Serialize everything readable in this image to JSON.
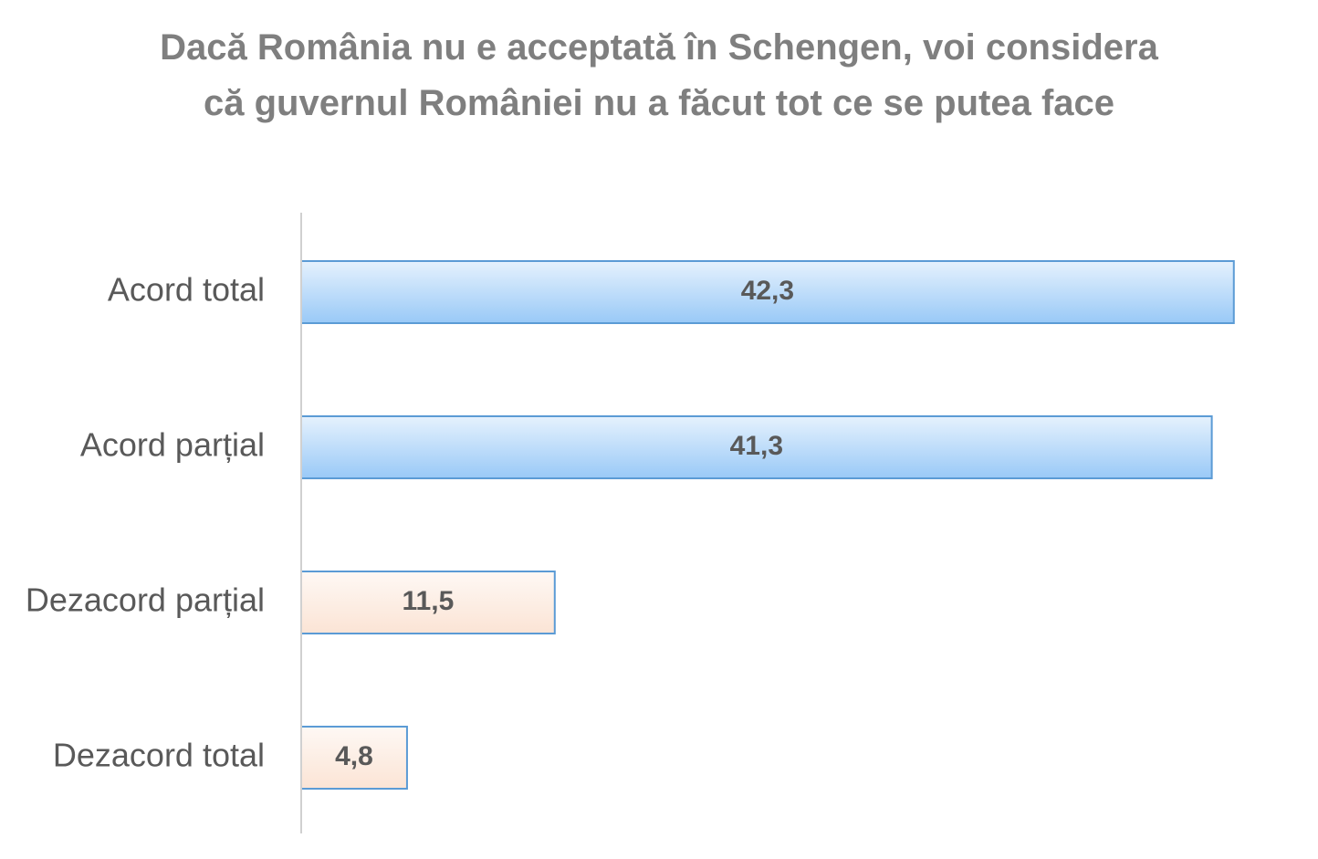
{
  "chart_data": {
    "type": "hbar",
    "title": "Dacă România nu e acceptată în Schengen, voi considera că guvernul României nu a făcut tot ce se putea face",
    "categories": [
      "Acord total",
      "Acord parțial",
      "Dezacord parțial",
      "Dezacord total"
    ],
    "values": [
      42.3,
      41.3,
      11.5,
      4.8
    ],
    "value_labels": [
      "42,3",
      "41,3",
      "11,5",
      "4,8"
    ],
    "colors": [
      "#99c9f7",
      "#99c9f7",
      "#fbe4d5",
      "#fbe4d5"
    ],
    "xlim": [
      0,
      45
    ]
  }
}
